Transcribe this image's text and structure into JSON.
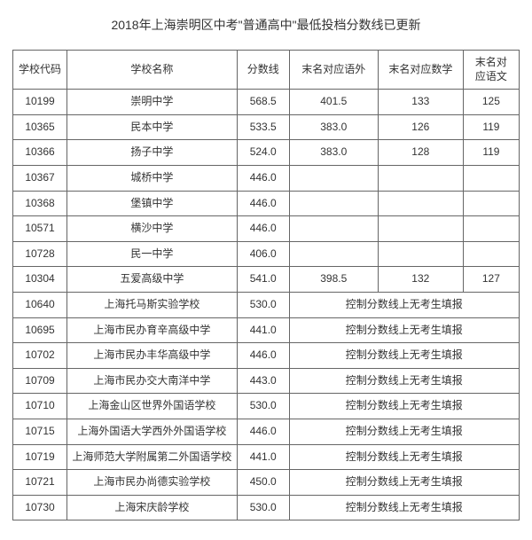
{
  "title": "2018年上海崇明区中考\"普通高中\"最低投档分数线已更新",
  "columns": [
    "学校代码",
    "学校名称",
    "分数线",
    "末名对应语外",
    "末名对应数学",
    "末名对\n应语文"
  ],
  "note_text": "控制分数线上无考生填报",
  "note_text_alt": "控制分数线上无考生填报",
  "rows": [
    {
      "code": "10199",
      "name": "崇明中学",
      "score": "568.5",
      "a": "401.5",
      "b": "133",
      "c": "125"
    },
    {
      "code": "10365",
      "name": "民本中学",
      "score": "533.5",
      "a": "383.0",
      "b": "126",
      "c": "119"
    },
    {
      "code": "10366",
      "name": "扬子中学",
      "score": "524.0",
      "a": "383.0",
      "b": "128",
      "c": "119"
    },
    {
      "code": "10367",
      "name": "城桥中学",
      "score": "446.0",
      "a": "",
      "b": "",
      "c": ""
    },
    {
      "code": "10368",
      "name": "堡镇中学",
      "score": "446.0",
      "a": "",
      "b": "",
      "c": ""
    },
    {
      "code": "10571",
      "name": "横沙中学",
      "score": "446.0",
      "a": "",
      "b": "",
      "c": ""
    },
    {
      "code": "10728",
      "name": "民一中学",
      "score": "406.0",
      "a": "",
      "b": "",
      "c": ""
    },
    {
      "code": "10304",
      "name": "五爱高级中学",
      "score": "541.0",
      "a": "398.5",
      "b": "132",
      "c": "127"
    },
    {
      "code": "10640",
      "name": "上海托马斯实验学校",
      "score": "530.0",
      "note": true
    },
    {
      "code": "10695",
      "name": "上海市民办育辛高级中学",
      "score": "441.0",
      "note": true
    },
    {
      "code": "10702",
      "name": "上海市民办丰华高级中学",
      "score": "446.0",
      "note": true
    },
    {
      "code": "10709",
      "name": "上海市民办交大南洋中学",
      "score": "443.0",
      "note": true
    },
    {
      "code": "10710",
      "name": "上海金山区世界外国语学校",
      "score": "530.0",
      "note": true
    },
    {
      "code": "10715",
      "name": "上海外国语大学西外外国语学校",
      "score": "446.0",
      "note": true
    },
    {
      "code": "10719",
      "name": "上海师范大学附属第二外国语学校",
      "score": "441.0",
      "note": true
    },
    {
      "code": "10721",
      "name": "上海市民办尚德实验学校",
      "score": "450.0",
      "note": true
    },
    {
      "code": "10730",
      "name": "上海宋庆龄学校",
      "score": "530.0",
      "note": true,
      "alt": true
    }
  ],
  "style": {
    "background": "#ffffff",
    "border_color": "#666666",
    "text_color": "#333333",
    "title_fontsize": 14,
    "cell_fontsize": 12
  }
}
